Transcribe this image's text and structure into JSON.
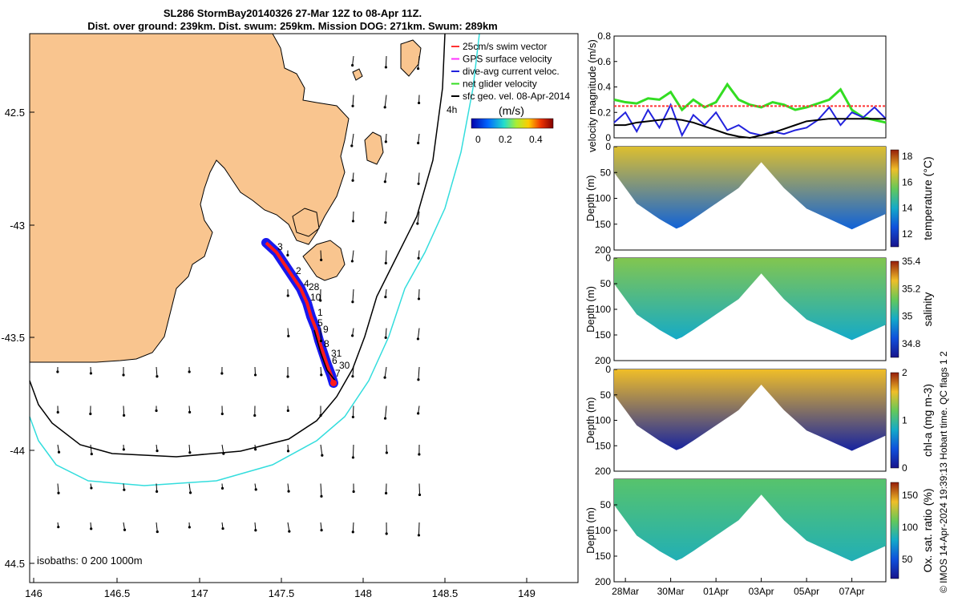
{
  "title": {
    "line1": "SL286 StormBay20140326 27-Mar 12Z to 08-Apr 11Z.",
    "line2": "Dist. over ground: 239km. Dist. swum: 259km. Mission DOG: 271km. Swum: 289km"
  },
  "credit": "© IMOS 14-Apr-2024 19:39:13 Hobart time. QC flags 1 2",
  "colors": {
    "land": "#f9c58f",
    "isobath200": "#000000",
    "isobath1000": "#33dddd",
    "track": "#ff1a1a",
    "dives": "#1818ee",
    "net": "#33dd22"
  },
  "map": {
    "lon_ticks": [
      "146",
      "146.5",
      "147",
      "147.5",
      "148",
      "148.5",
      "149"
    ],
    "lat_ticks": [
      "42.5",
      "-43",
      "-43.5",
      "-44",
      "44.5"
    ],
    "isobath_label": "isobaths: 0   200  1000m",
    "legend": [
      {
        "label": "25cm/s swim vector",
        "color": "#ff3333"
      },
      {
        "label": "GPS surface velocity",
        "color": "#ff33ff"
      },
      {
        "label": "dive-avg current veloc.",
        "color": "#2222dd"
      },
      {
        "label": "net glider velocity",
        "color": "#33dd22"
      },
      {
        "label": "sfc geo. vel. 08-Apr-2014",
        "color": "#000000"
      }
    ],
    "colorbar": {
      "title": "(m/s)",
      "ticks": [
        "0",
        "0.2",
        "0.4"
      ],
      "note": "4h"
    },
    "day_labels": [
      "3",
      "2",
      "4",
      "28",
      "10",
      "1",
      "5",
      "9",
      "8",
      "31",
      "6",
      "30",
      "7"
    ]
  },
  "chart_data": [
    {
      "type": "line",
      "title": "",
      "ylabel": "velocity magnitude (m/s)",
      "ylim": [
        0,
        0.8
      ],
      "yticks": [
        "0",
        "0.2",
        "0.4",
        "0.6",
        "0.8"
      ],
      "x_days": [
        0,
        0.5,
        1,
        1.5,
        2,
        2.5,
        3,
        3.5,
        4,
        4.5,
        5,
        5.5,
        6,
        6.5,
        7,
        7.5,
        8,
        8.5,
        9,
        9.5,
        10,
        10.5,
        11,
        11.5,
        12
      ],
      "series": [
        {
          "name": "net glider velocity",
          "color": "#33dd22",
          "values": [
            0.3,
            0.28,
            0.27,
            0.31,
            0.3,
            0.36,
            0.22,
            0.3,
            0.24,
            0.28,
            0.42,
            0.3,
            0.26,
            0.24,
            0.28,
            0.26,
            0.22,
            0.24,
            0.27,
            0.3,
            0.38,
            0.22,
            0.16,
            0.14,
            0.12
          ]
        },
        {
          "name": "dive-avg current veloc.",
          "color": "#2222dd",
          "values": [
            0.12,
            0.2,
            0.05,
            0.22,
            0.08,
            0.26,
            0.02,
            0.18,
            0.1,
            0.2,
            0.06,
            0.1,
            0.04,
            0.02,
            0.05,
            0.03,
            0.06,
            0.08,
            0.14,
            0.24,
            0.1,
            0.2,
            0.16,
            0.24,
            0.15
          ]
        },
        {
          "name": "surface speed",
          "color": "#000000",
          "values": [
            0.1,
            0.1,
            0.12,
            0.13,
            0.14,
            0.15,
            0.14,
            0.12,
            0.09,
            0.06,
            0.03,
            0.01,
            0.0,
            0.02,
            0.04,
            0.07,
            0.1,
            0.13,
            0.14,
            0.15,
            0.15,
            0.15,
            0.15,
            0.15,
            0.15
          ]
        },
        {
          "name": "25cm/s swim vector",
          "color": "#ff3333",
          "values": [
            0.25,
            0.25,
            0.25,
            0.25,
            0.25,
            0.25,
            0.25,
            0.25,
            0.25,
            0.25,
            0.25,
            0.25,
            0.25,
            0.25,
            0.25,
            0.25,
            0.25,
            0.25,
            0.25,
            0.25,
            0.25,
            0.25,
            0.25,
            0.25,
            0.25
          ]
        }
      ]
    },
    {
      "type": "heatmap",
      "ylabel": "Depth (m)",
      "clabel": "temperature (°C)",
      "ylim": [
        0,
        200
      ],
      "yticks": [
        "0",
        "50",
        "100",
        "150",
        "200"
      ],
      "cticks": [
        "12",
        "14",
        "16",
        "18"
      ],
      "crange": [
        11,
        18.5
      ],
      "surface_value": 16.8,
      "deep_value": 12.8
    },
    {
      "type": "heatmap",
      "ylabel": "Depth (m)",
      "clabel": "salinity",
      "ylim": [
        0,
        200
      ],
      "yticks": [
        "0",
        "50",
        "100",
        "150",
        "200"
      ],
      "cticks": [
        "34.8",
        "35",
        "35.2",
        "35.4"
      ],
      "crange": [
        34.7,
        35.4
      ],
      "surface_value": 35.15,
      "deep_value": 34.98
    },
    {
      "type": "heatmap",
      "ylabel": "Depth (m)",
      "clabel": "chl-a (mg m-3)",
      "ylim": [
        0,
        200
      ],
      "yticks": [
        "0",
        "50",
        "100",
        "150",
        "200"
      ],
      "cticks": [
        "0",
        "1",
        "2"
      ],
      "crange": [
        0,
        2
      ],
      "surface_value": 1.6,
      "deep_value": 0.1
    },
    {
      "type": "heatmap",
      "ylabel": "Depth (m)",
      "clabel": "Ox. sat. ratio (%)",
      "ylim": [
        0,
        200
      ],
      "yticks": [
        "50",
        "100",
        "150",
        "200"
      ],
      "cticks": [
        "50",
        "100",
        "150"
      ],
      "crange": [
        20,
        170
      ],
      "surface_value": 105,
      "deep_value": 85
    },
    {
      "type": "axis",
      "xlabels": [
        "28Mar",
        "30Mar",
        "01Apr",
        "03Apr",
        "05Apr",
        "07Apr"
      ],
      "x_label_days": [
        0.5,
        2.5,
        4.5,
        6.5,
        8.5,
        10.5
      ],
      "bottom_depth_days": [
        0,
        1,
        2,
        2.8,
        3.5,
        4.5,
        5.5,
        6.5,
        7.5,
        8.5,
        9.5,
        10.5,
        11,
        12
      ],
      "bottom_depth_m": [
        50,
        110,
        140,
        160,
        140,
        110,
        80,
        30,
        80,
        120,
        140,
        160,
        150,
        130
      ]
    }
  ]
}
